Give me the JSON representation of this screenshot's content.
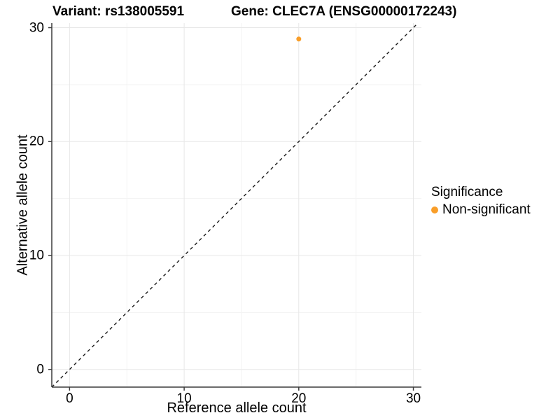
{
  "chart_data": {
    "type": "scatter",
    "title_left": "Variant: rs138005591",
    "title_right": "Gene: CLEC7A (ENSG00000172243)",
    "xlabel": "Reference allele count",
    "ylabel": "Alternative allele count",
    "x_ticks": [
      0,
      10,
      20,
      30
    ],
    "y_ticks": [
      0,
      10,
      20,
      30
    ],
    "x_minor_ticks": [
      5,
      15,
      25
    ],
    "y_minor_ticks": [
      5,
      15,
      25
    ],
    "xlim": [
      -1.55,
      30.7
    ],
    "ylim": [
      -1.55,
      30.4
    ],
    "grid": true,
    "points": [
      {
        "x": 20,
        "y": 29,
        "series": "Non-significant"
      }
    ],
    "identity_line": {
      "type": "dashed",
      "from": [
        -1.55,
        -1.55
      ],
      "to": [
        30.4,
        30.4
      ],
      "color": "#1a1a1a"
    },
    "legend": {
      "position": "right",
      "title": "Significance",
      "entries": [
        {
          "label": "Non-significant",
          "color": "#F99E29"
        }
      ]
    },
    "colors": {
      "point": "#F99E29",
      "grid_major": "#e7e7e7",
      "grid_minor": "#f3f3f3",
      "axis_line": "#3c3c3c",
      "text": "#000000",
      "background": "#ffffff"
    }
  }
}
